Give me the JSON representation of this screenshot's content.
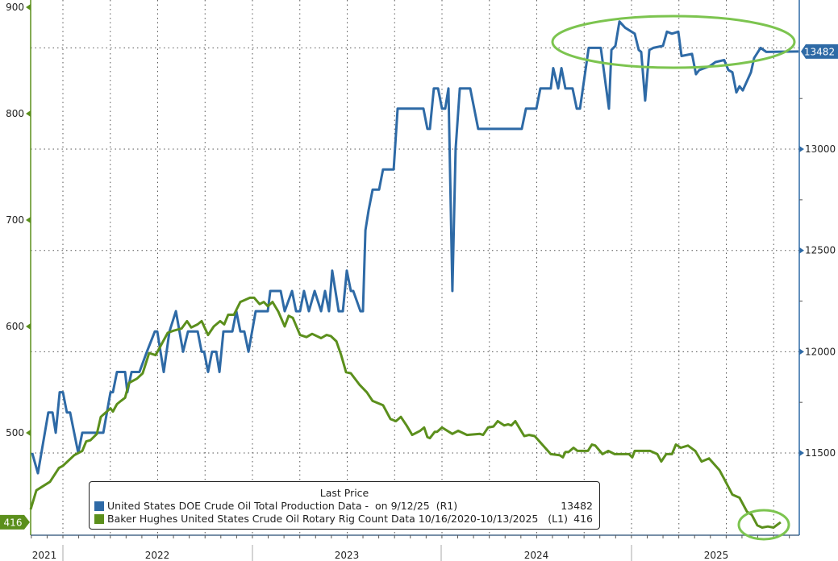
{
  "chart_data": {
    "type": "line",
    "title": "",
    "legend": {
      "title": "Last Price",
      "placement": "bottom-left",
      "entries": [
        {
          "label": "United States DOE Crude Oil Total Production Data -  on 9/12/25  (R1)",
          "value": "13482",
          "color": "#2e6aa6"
        },
        {
          "label": "Baker Hughes United States Crude Oil Rotary Rig Count Data 10/16/2020-10/13/2025   (L1)",
          "value": "416",
          "color": "#5b8f1c"
        }
      ]
    },
    "x_axis": {
      "range": [
        2021.83,
        2025.89
      ],
      "tick_labels": [
        "2021",
        "2022",
        "2023",
        "2024",
        "2025"
      ]
    },
    "left_axis": {
      "range": [
        407,
        906
      ],
      "ticks": [
        900,
        800,
        700,
        600,
        500
      ],
      "last_value_badge": "416",
      "color": "#5b8f1c"
    },
    "right_axis": {
      "range": [
        11000,
        13737
      ],
      "ticks": [
        13000,
        12500,
        12000,
        11500
      ],
      "last_value_badge": "13482",
      "color": "#2e6aa6"
    },
    "grid": true,
    "annotations": [
      {
        "shape": "ellipse",
        "around": "production highs 2024-2025",
        "color": "#7cc44f"
      },
      {
        "shape": "ellipse",
        "around": "rig count low 2025",
        "color": "#7cc44f"
      }
    ],
    "series": [
      {
        "name": "United States DOE Crude Oil Total Production",
        "axis": "right",
        "color": "#2e6aa6",
        "x": [
          2021.838,
          2021.868,
          2021.923,
          2021.945,
          2021.962,
          2021.983,
          2022.0,
          2022.021,
          2022.038,
          2022.081,
          2022.102,
          2022.213,
          2022.251,
          2022.264,
          2022.285,
          2022.328,
          2022.34,
          2022.362,
          2022.404,
          2022.443,
          2022.485,
          2022.498,
          2022.532,
          2022.562,
          2022.596,
          2022.634,
          2022.66,
          2022.711,
          2022.732,
          2022.745,
          2022.766,
          2022.787,
          2022.809,
          2022.826,
          2022.847,
          2022.894,
          2022.915,
          2022.936,
          2022.957,
          2022.979,
          2023.017,
          2023.081,
          2023.094,
          2023.149,
          2023.17,
          2023.209,
          2023.23,
          2023.251,
          2023.272,
          2023.298,
          2023.328,
          2023.362,
          2023.383,
          2023.404,
          2023.421,
          2023.455,
          2023.477,
          2023.498,
          2023.519,
          2023.532,
          2023.57,
          2023.583,
          2023.596,
          2023.613,
          2023.634,
          2023.668,
          2023.689,
          2023.745,
          2023.766,
          2023.902,
          2023.923,
          2023.936,
          2023.957,
          2023.979,
          2024.0,
          2024.017,
          2024.034,
          2024.055,
          2024.072,
          2024.094,
          2024.149,
          2024.191,
          2024.421,
          2024.443,
          2024.498,
          2024.519,
          2024.574,
          2024.587,
          2024.613,
          2024.63,
          2024.651,
          2024.689,
          2024.711,
          2024.728,
          2024.774,
          2024.838,
          2024.881,
          2024.894,
          2024.915,
          2024.936,
          2024.966,
          2025.017,
          2025.038,
          2025.051,
          2025.072,
          2025.094,
          2025.115,
          2025.166,
          2025.187,
          2025.213,
          2025.247,
          2025.264,
          2025.319,
          2025.34,
          2025.357,
          2025.413,
          2025.443,
          2025.489,
          2025.511,
          2025.532,
          2025.553,
          2025.57,
          2025.587,
          2025.63,
          2025.647,
          2025.681,
          2025.711,
          2025.881
        ],
        "y": [
          11500,
          11400,
          11700,
          11700,
          11600,
          11800,
          11800,
          11700,
          11700,
          11500,
          11600,
          11600,
          11800,
          11800,
          11900,
          11900,
          11800,
          11900,
          11900,
          12000,
          12100,
          12100,
          11900,
          12100,
          12200,
          12000,
          12100,
          12100,
          12000,
          12000,
          11900,
          12000,
          12000,
          11900,
          12100,
          12100,
          12200,
          12100,
          12100,
          12000,
          12200,
          12200,
          12300,
          12300,
          12200,
          12300,
          12200,
          12200,
          12300,
          12200,
          12300,
          12200,
          12300,
          12200,
          12400,
          12200,
          12200,
          12400,
          12300,
          12300,
          12200,
          12200,
          12600,
          12700,
          12800,
          12800,
          12900,
          12900,
          13200,
          13200,
          13100,
          13100,
          13300,
          13300,
          13200,
          13200,
          13300,
          12300,
          13000,
          13300,
          13300,
          13100,
          13100,
          13200,
          13200,
          13300,
          13300,
          13400,
          13300,
          13400,
          13300,
          13300,
          13200,
          13200,
          13500,
          13500,
          13200,
          13490,
          13510,
          13630,
          13600,
          13570,
          13490,
          13480,
          13240,
          13490,
          13500,
          13510,
          13580,
          13570,
          13580,
          13460,
          13470,
          13370,
          13390,
          13410,
          13430,
          13440,
          13390,
          13380,
          13280,
          13310,
          13290,
          13380,
          13450,
          13500,
          13480,
          13482
        ]
      },
      {
        "name": "Baker Hughes United States Crude Oil Rotary Rig Count",
        "axis": "left",
        "color": "#5b8f1c",
        "x": [
          2021.83,
          2021.86,
          2021.932,
          2021.979,
          2022.0,
          2022.06,
          2022.102,
          2022.123,
          2022.145,
          2022.179,
          2022.2,
          2022.251,
          2022.264,
          2022.285,
          2022.306,
          2022.328,
          2022.349,
          2022.391,
          2022.421,
          2022.455,
          2022.489,
          2022.553,
          2022.583,
          2022.626,
          2022.655,
          2022.677,
          2022.711,
          2022.732,
          2022.766,
          2022.796,
          2022.83,
          2022.851,
          2022.872,
          2022.902,
          2022.936,
          2022.987,
          2023.009,
          2023.038,
          2023.06,
          2023.081,
          2023.106,
          2023.136,
          2023.17,
          2023.191,
          2023.213,
          2023.251,
          2023.285,
          2023.315,
          2023.362,
          2023.391,
          2023.413,
          2023.443,
          2023.468,
          2023.494,
          2023.519,
          2023.566,
          2023.604,
          2023.634,
          2023.689,
          2023.728,
          2023.757,
          2023.783,
          2023.813,
          2023.843,
          2023.885,
          2023.906,
          2023.923,
          2023.936,
          2023.962,
          2023.974,
          2024.0,
          2024.055,
          2024.085,
          2024.132,
          2024.2,
          2024.217,
          2024.243,
          2024.272,
          2024.294,
          2024.328,
          2024.349,
          2024.366,
          2024.387,
          2024.434,
          2024.46,
          2024.489,
          2024.574,
          2024.621,
          2024.638,
          2024.651,
          2024.668,
          2024.694,
          2024.715,
          2024.77,
          2024.791,
          2024.809,
          2024.847,
          2024.877,
          2024.911,
          2024.949,
          2024.987,
          2025.004,
          2025.017,
          2025.072,
          2025.098,
          2025.136,
          2025.157,
          2025.183,
          2025.213,
          2025.234,
          2025.26,
          2025.298,
          2025.336,
          2025.37,
          2025.409,
          2025.464,
          2025.494,
          2025.532,
          2025.57,
          2025.609,
          2025.634,
          2025.664,
          2025.689,
          2025.719,
          2025.749,
          2025.787
        ],
        "y": [
          428,
          446,
          454,
          467,
          469,
          479,
          483,
          492,
          493,
          499,
          515,
          523,
          520,
          527,
          530,
          533,
          547,
          551,
          556,
          575,
          573,
          594,
          596,
          598,
          605,
          599,
          602,
          605,
          592,
          600,
          605,
          602,
          611,
          611,
          623,
          627,
          627,
          621,
          623,
          619,
          623,
          614,
          600,
          610,
          608,
          592,
          590,
          593,
          589,
          592,
          591,
          586,
          573,
          557,
          556,
          545,
          538,
          530,
          526,
          513,
          511,
          515,
          507,
          498,
          502,
          505,
          496,
          495,
          501,
          501,
          505,
          499,
          502,
          498,
          499,
          498,
          505,
          506,
          511,
          507,
          508,
          507,
          511,
          497,
          498,
          497,
          480,
          479,
          477,
          482,
          482,
          486,
          483,
          483,
          489,
          488,
          480,
          483,
          480,
          480,
          480,
          477,
          483,
          483,
          483,
          480,
          473,
          480,
          480,
          489,
          486,
          488,
          483,
          473,
          476,
          465,
          455,
          442,
          439,
          426,
          423,
          413,
          411,
          412,
          411,
          416
        ]
      }
    ]
  }
}
